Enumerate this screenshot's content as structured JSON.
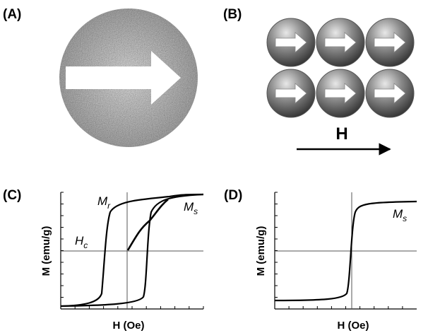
{
  "panels": [
    {
      "label": "(A)"
    },
    {
      "label": "(B)",
      "field_label": "H"
    },
    {
      "label": "(C)",
      "y_axis_label": "M (emu/g)",
      "x_axis_label": "H (Oe)",
      "annotations": [
        {
          "main": "M",
          "sub": "r"
        },
        {
          "main": "M",
          "sub": "s"
        },
        {
          "main": "H",
          "sub": "c"
        }
      ]
    },
    {
      "label": "(D)",
      "y_axis_label": "M (emu/g)",
      "x_axis_label": "H (Oe)",
      "annotations": [
        {
          "main": "M",
          "sub": "s"
        }
      ]
    }
  ]
}
